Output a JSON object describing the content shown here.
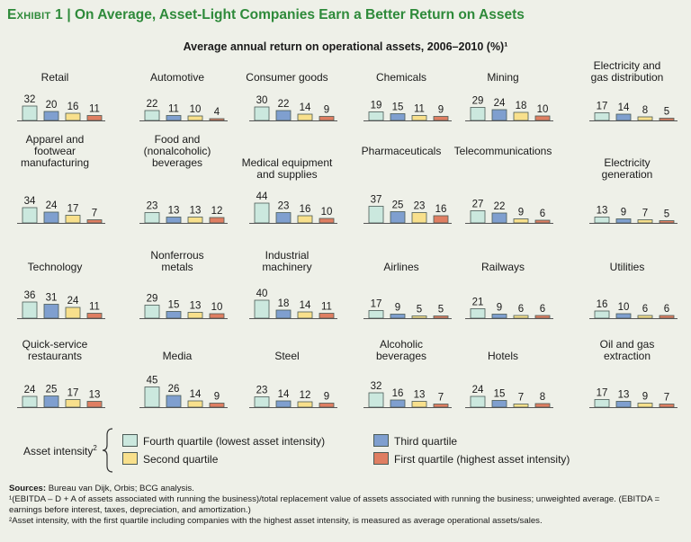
{
  "title": {
    "exhibit": "Exhibit 1",
    "separator": "|",
    "text": "On Average, Asset-Light Companies Earn a Better Return on Assets"
  },
  "subtitle": "Average annual return on operational assets, 2006–2010 (%)¹",
  "colors": {
    "fourth": "#cbe8de",
    "third": "#7f9fcf",
    "second": "#f8e08c",
    "first": "#df7e62",
    "bar_border": "#4a5a55",
    "title": "#2e8a3a"
  },
  "chart_data": {
    "type": "bar",
    "series_order": [
      "Fourth quartile (lowest asset intensity)",
      "Third quartile",
      "Second quartile",
      "First quartile (highest asset intensity)"
    ],
    "ylim": [
      0,
      45
    ],
    "panels": [
      {
        "name": [
          "Retail"
        ],
        "values": [
          32,
          20,
          16,
          11
        ]
      },
      {
        "name": [
          "Automotive"
        ],
        "values": [
          22,
          11,
          10,
          4
        ]
      },
      {
        "name": [
          "Consumer goods"
        ],
        "values": [
          30,
          22,
          14,
          9
        ]
      },
      {
        "name": [
          "Chemicals"
        ],
        "values": [
          19,
          15,
          11,
          9
        ]
      },
      {
        "name": [
          "Mining"
        ],
        "values": [
          29,
          24,
          18,
          10
        ]
      },
      {
        "name": [
          "Electricity and",
          "gas distribution"
        ],
        "values": [
          17,
          14,
          8,
          5
        ]
      },
      {
        "name": [
          "Apparel and",
          "footwear",
          "manufacturing"
        ],
        "values": [
          34,
          24,
          17,
          7
        ]
      },
      {
        "name": [
          "Food and",
          "(nonalcoholic)",
          "beverages"
        ],
        "values": [
          23,
          13,
          13,
          12
        ]
      },
      {
        "name": [
          "Medical equipment",
          "and supplies"
        ],
        "values": [
          44,
          23,
          16,
          10
        ]
      },
      {
        "name": [
          "Pharmaceuticals"
        ],
        "values": [
          37,
          25,
          23,
          16
        ]
      },
      {
        "name": [
          "Telecommunications"
        ],
        "values": [
          27,
          22,
          9,
          6
        ]
      },
      {
        "name": [
          "Electricity",
          "generation"
        ],
        "values": [
          13,
          9,
          7,
          5
        ]
      },
      {
        "name": [
          "Technology"
        ],
        "values": [
          36,
          31,
          24,
          11
        ]
      },
      {
        "name": [
          "Nonferrous",
          "metals"
        ],
        "values": [
          29,
          15,
          13,
          10
        ]
      },
      {
        "name": [
          "Industrial",
          "machinery"
        ],
        "values": [
          40,
          18,
          14,
          11
        ]
      },
      {
        "name": [
          "Airlines"
        ],
        "values": [
          17,
          9,
          5,
          5
        ]
      },
      {
        "name": [
          "Railways"
        ],
        "values": [
          21,
          9,
          6,
          6
        ]
      },
      {
        "name": [
          "Utilities"
        ],
        "values": [
          16,
          10,
          6,
          6
        ]
      },
      {
        "name": [
          "Quick-service",
          "restaurants"
        ],
        "values": [
          24,
          25,
          17,
          13
        ]
      },
      {
        "name": [
          "Media"
        ],
        "values": [
          45,
          26,
          14,
          9
        ]
      },
      {
        "name": [
          "Steel"
        ],
        "values": [
          23,
          14,
          12,
          9
        ]
      },
      {
        "name": [
          "Alcoholic",
          "beverages"
        ],
        "values": [
          32,
          16,
          13,
          7
        ]
      },
      {
        "name": [
          "Hotels"
        ],
        "values": [
          24,
          15,
          7,
          8
        ]
      },
      {
        "name": [
          "Oil and gas",
          "extraction"
        ],
        "values": [
          17,
          13,
          9,
          7
        ]
      }
    ]
  },
  "legend": {
    "title": "Asset intensity",
    "title_note": "2",
    "items": [
      {
        "label": "Fourth quartile (lowest asset intensity)",
        "color": "#cbe8de"
      },
      {
        "label": "Third quartile",
        "color": "#7f9fcf"
      },
      {
        "label": "Second quartile",
        "color": "#f8e08c"
      },
      {
        "label": "First quartile (highest asset intensity)",
        "color": "#df7e62"
      }
    ]
  },
  "sources": {
    "label": "Sources:",
    "text": "Bureau van Dijk, Orbis; BCG analysis.",
    "note1": "¹(EBITDA – D + A of assets associated with running the business)/total replacement value of assets associated with running the business; unweighted average. (EBITDA = earnings before interest, taxes, depreciation, and amortization.)",
    "note2": "²Asset intensity, with the first quartile including companies with the highest asset intensity, is measured as average operational assets/sales."
  }
}
